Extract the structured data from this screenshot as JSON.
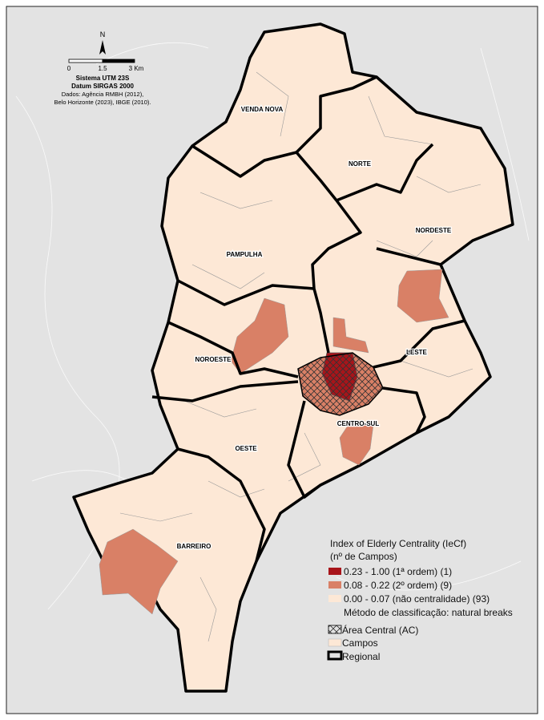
{
  "map": {
    "north_arrow": "N",
    "scale_labels": [
      "0",
      "1.5",
      "3 Km"
    ],
    "info": [
      "Sistema UTM 23S",
      "Datum SIRGAS 2000",
      "Dados: Agência RMBH (2012),",
      "Belo Horizonte (2023), IBGE (2010)."
    ],
    "regions": [
      "VENDA NOVA",
      "NORTE",
      "NORDESTE",
      "PAMPULHA",
      "NOROESTE",
      "LESTE",
      "CENTRO-SUL",
      "OESTE",
      "BARREIRO"
    ]
  },
  "legend": {
    "title": "Index of Elderly Centrality (IeCf)",
    "subtitle": "(nº de Campos)",
    "classes": [
      "0.23 - 1.00 (1ª ordem) (1)",
      "0.08 - 0.22 (2º ordem) (9)",
      "0.00 - 0.07 (não centralidade) (93)"
    ],
    "method": "Método de classificação: natural breaks",
    "others": [
      "Área Central (AC)",
      "Campos",
      "Regional"
    ]
  }
}
